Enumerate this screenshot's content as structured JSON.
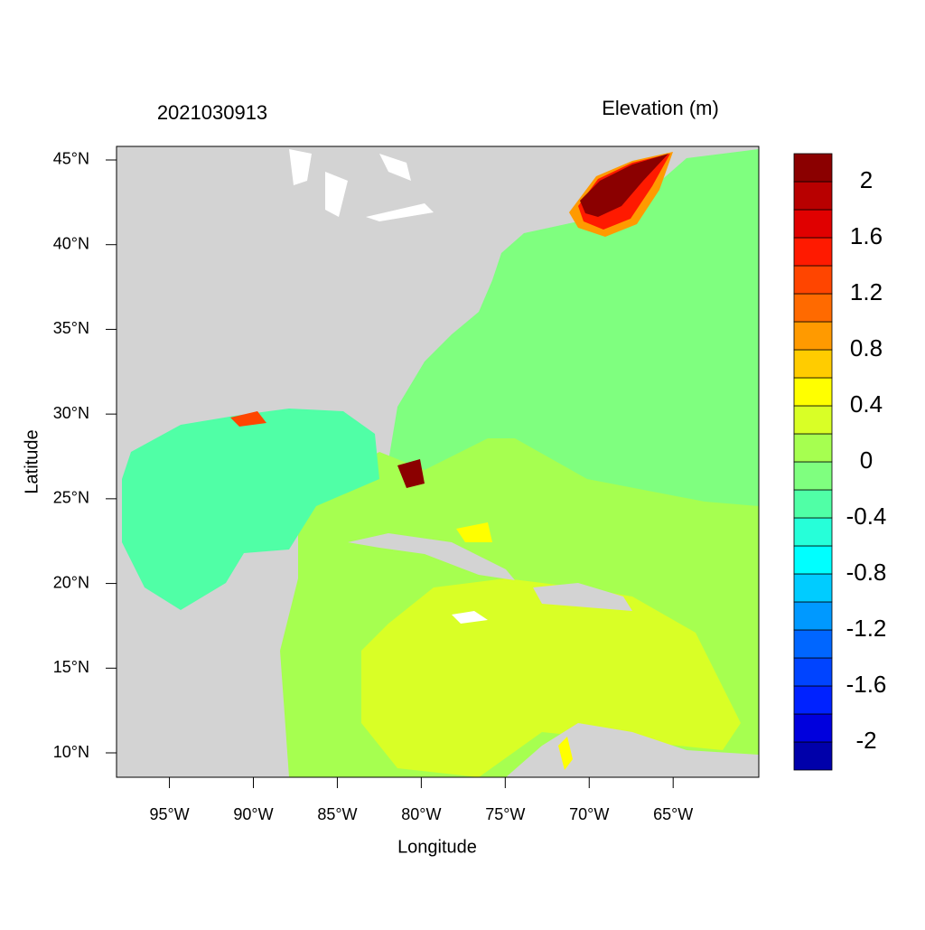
{
  "chart_data": {
    "type": "map",
    "title": "2021030913",
    "subtitle": "Elevation (m)",
    "xlabel": "Longitude",
    "ylabel": "Latitude",
    "xlim": [
      -98.15,
      -59.9
    ],
    "ylim": [
      8.56,
      45.8
    ],
    "xticks": [
      {
        "value": -95,
        "label": "95°W"
      },
      {
        "value": -90,
        "label": "90°W"
      },
      {
        "value": -85,
        "label": "85°W"
      },
      {
        "value": -80,
        "label": "80°W"
      },
      {
        "value": -75,
        "label": "75°W"
      },
      {
        "value": -70,
        "label": "70°W"
      },
      {
        "value": -65,
        "label": "65°W"
      }
    ],
    "yticks": [
      {
        "value": 10,
        "label": "10°N"
      },
      {
        "value": 15,
        "label": "15°N"
      },
      {
        "value": 20,
        "label": "20°N"
      },
      {
        "value": 25,
        "label": "25°N"
      },
      {
        "value": 30,
        "label": "30°N"
      },
      {
        "value": 35,
        "label": "35°N"
      },
      {
        "value": 40,
        "label": "40°N"
      },
      {
        "value": 45,
        "label": "45°N"
      }
    ],
    "colorbar": {
      "range": [
        -2.2,
        2.2
      ],
      "colors": [
        "#0000aa",
        "#0000dd",
        "#0022ff",
        "#0044ff",
        "#0066ff",
        "#0099ff",
        "#00ccff",
        "#00ffff",
        "#26ffd9",
        "#50ffa6",
        "#7fff7f",
        "#a6ff50",
        "#d9ff26",
        "#ffff00",
        "#ffcc00",
        "#ff9a00",
        "#ff6a00",
        "#ff4500",
        "#ff1a00",
        "#e00000",
        "#b80000",
        "#8b0000"
      ],
      "ticks": [
        -2,
        -1.6,
        -1.2,
        -0.8,
        -0.4,
        0,
        0.4,
        0.8,
        1.2,
        1.6,
        2
      ]
    }
  }
}
